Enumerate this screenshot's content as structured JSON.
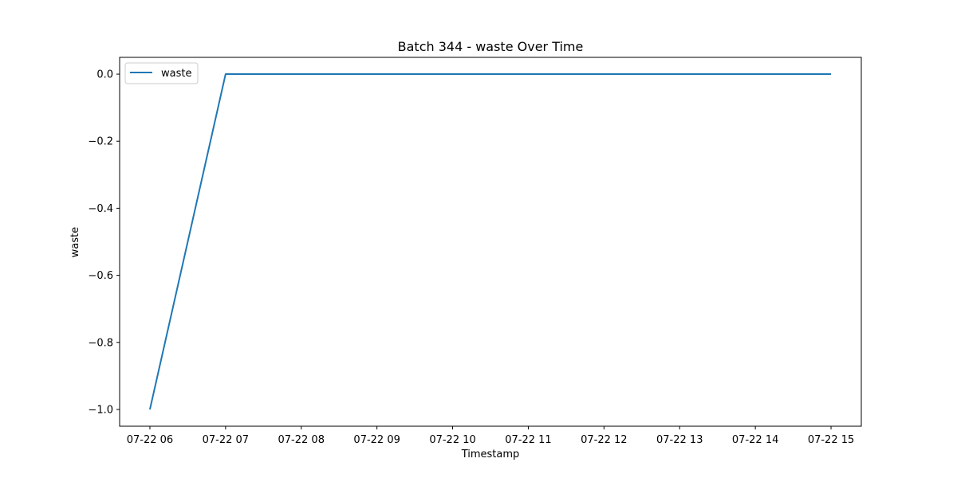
{
  "chart_data": {
    "type": "line",
    "title": "Batch 344 - waste Over Time",
    "xlabel": "Timestamp",
    "ylabel": "waste",
    "x_ticks": [
      "07-22 06",
      "07-22 07",
      "07-22 08",
      "07-22 09",
      "07-22 10",
      "07-22 11",
      "07-22 12",
      "07-22 13",
      "07-22 14",
      "07-22 15"
    ],
    "y_ticks": [
      "−1.0",
      "−0.8",
      "−0.6",
      "−0.4",
      "−0.2",
      "0.0"
    ],
    "y_tick_values": [
      -1.0,
      -0.8,
      -0.6,
      -0.4,
      -0.2,
      0.0
    ],
    "ylim": [
      -1.05,
      0.05
    ],
    "xlim": [
      "07-22 05:36",
      "07-22 15:24"
    ],
    "x": [
      "07-22 06:00",
      "07-22 07:00",
      "07-22 08:00",
      "07-22 09:00",
      "07-22 10:00",
      "07-22 11:00",
      "07-22 12:00",
      "07-22 13:00",
      "07-22 14:00",
      "07-22 15:00"
    ],
    "series": [
      {
        "name": "waste",
        "color": "#1f77b4",
        "values": [
          -1.0,
          0.0,
          0.0,
          0.0,
          0.0,
          0.0,
          0.0,
          0.0,
          0.0,
          0.0
        ]
      }
    ],
    "legend": {
      "position": "top-left"
    },
    "grid": false
  }
}
